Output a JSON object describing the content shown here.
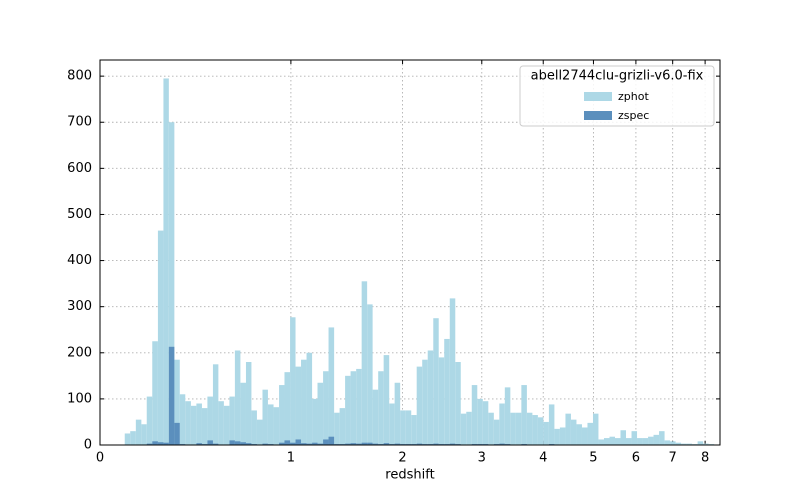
{
  "chart_data": {
    "type": "histogram",
    "xlabel": "redshift",
    "xscale": "log1p",
    "grid": true,
    "legend_loc": "upper right",
    "legend_title": "abell2744clu-grizli-v6.0-fix",
    "xlim": [
      0,
      8.5
    ],
    "ylim": [
      0,
      835
    ],
    "xticks": [
      0,
      1,
      2,
      3,
      4,
      5,
      6,
      7,
      8
    ],
    "yticks": [
      0,
      100,
      200,
      300,
      400,
      500,
      600,
      700,
      800
    ],
    "bins": [
      0.094,
      0.116,
      0.139,
      0.162,
      0.185,
      0.209,
      0.234,
      0.259,
      0.284,
      0.31,
      0.336,
      0.363,
      0.391,
      0.419,
      0.448,
      0.477,
      0.507,
      0.537,
      0.568,
      0.6,
      0.632,
      0.665,
      0.699,
      0.733,
      0.768,
      0.804,
      0.84,
      0.878,
      0.916,
      0.954,
      0.994,
      1.034,
      1.075,
      1.117,
      1.16,
      1.203,
      1.248,
      1.293,
      1.34,
      1.387,
      1.435,
      1.484,
      1.535,
      1.586,
      1.638,
      1.691,
      1.746,
      1.801,
      1.858,
      1.915,
      1.974,
      2.034,
      2.096,
      2.158,
      2.222,
      2.287,
      2.354,
      2.421,
      2.49,
      2.561,
      2.633,
      2.706,
      2.781,
      2.857,
      2.935,
      3.015,
      3.096,
      3.179,
      3.263,
      3.349,
      3.437,
      3.527,
      3.618,
      3.712,
      3.807,
      3.904,
      4.003,
      4.104,
      4.207,
      4.312,
      4.42,
      4.529,
      4.641,
      4.755,
      4.871,
      4.99,
      5.11,
      5.234,
      5.36,
      5.488,
      5.619,
      5.753,
      5.89,
      6.029,
      6.171,
      6.316,
      6.463,
      6.614,
      6.768,
      6.925,
      7.085,
      7.248,
      7.415,
      7.585,
      7.758,
      7.935,
      8.116,
      8.3
    ],
    "series": [
      {
        "name": "zphot",
        "color": "#add8e6",
        "values": [
          25,
          30,
          55,
          45,
          105,
          225,
          465,
          795,
          700,
          185,
          110,
          95,
          85,
          90,
          80,
          105,
          175,
          95,
          85,
          105,
          205,
          135,
          180,
          75,
          55,
          120,
          88,
          82,
          130,
          158,
          277,
          170,
          185,
          200,
          100,
          135,
          160,
          255,
          70,
          80,
          150,
          160,
          165,
          355,
          305,
          120,
          160,
          195,
          90,
          135,
          75,
          75,
          65,
          170,
          185,
          205,
          275,
          190,
          230,
          318,
          180,
          68,
          72,
          130,
          100,
          95,
          70,
          55,
          90,
          125,
          70,
          70,
          130,
          70,
          65,
          60,
          50,
          88,
          35,
          38,
          68,
          55,
          45,
          38,
          48,
          68,
          12,
          15,
          18,
          15,
          32,
          15,
          30,
          15,
          15,
          18,
          22,
          30,
          10,
          8,
          5,
          3,
          3,
          2,
          8,
          3,
          2
        ]
      },
      {
        "name": "zspec",
        "color": "#5b8fbd",
        "values": [
          0,
          0,
          0,
          0,
          3,
          8,
          6,
          5,
          213,
          48,
          2,
          0,
          0,
          4,
          2,
          10,
          3,
          0,
          0,
          10,
          8,
          6,
          4,
          2,
          0,
          3,
          2,
          0,
          5,
          10,
          5,
          12,
          4,
          3,
          5,
          3,
          12,
          18,
          2,
          2,
          3,
          4,
          3,
          5,
          5,
          3,
          2,
          4,
          2,
          3,
          2,
          2,
          2,
          3,
          2,
          2,
          3,
          2,
          2,
          3,
          2,
          1,
          1,
          2,
          2,
          2,
          1,
          2,
          3,
          2,
          1,
          1,
          2,
          1,
          1,
          1,
          1,
          2,
          1,
          1,
          1,
          1,
          1,
          1,
          1,
          1,
          0,
          0,
          0,
          0,
          1,
          0,
          0,
          0,
          0,
          0,
          0,
          1,
          0,
          0,
          0,
          0,
          0,
          0,
          1,
          0,
          0
        ]
      }
    ]
  }
}
